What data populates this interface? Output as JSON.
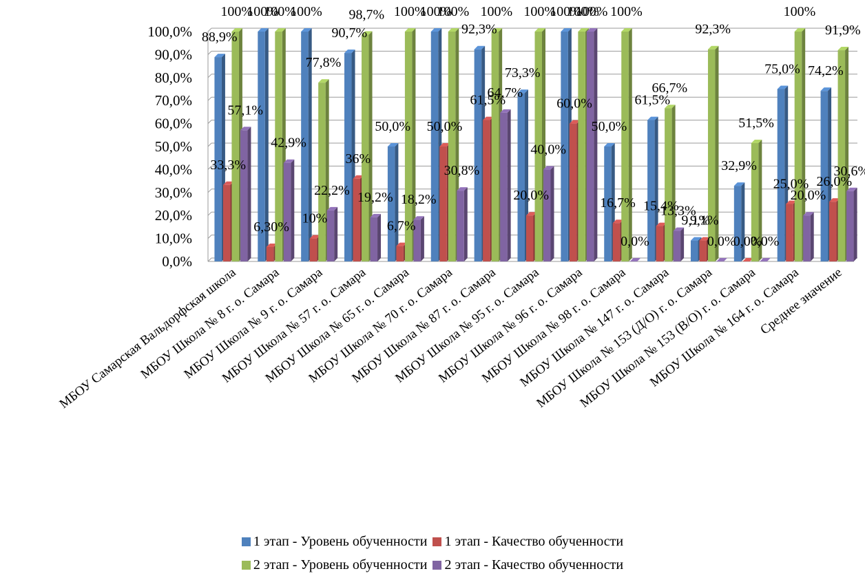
{
  "chart_data": {
    "type": "bar",
    "title": "",
    "xlabel": "",
    "ylabel": "",
    "ylim": [
      0,
      100
    ],
    "yticks": [
      "0,0%",
      "10,0%",
      "20,0%",
      "30,0%",
      "40,0%",
      "50,0%",
      "60,0%",
      "70,0%",
      "80,0%",
      "90,0%",
      "100,0%"
    ],
    "grid": true,
    "legend_position": "bottom",
    "categories": [
      "МБОУ Самарская Вальдорфская школа",
      "МБОУ Школа № 8 г. о. Самара",
      "МБОУ Школа № 9 г. о. Самара",
      "МБОУ Школа № 57 г. о. Самара",
      "МБОУ Школа № 65 г. о. Самара",
      "МБОУ Школа № 70 г. о. Самара",
      "МБОУ Школа № 87 г. о. Самара",
      "МБОУ Школа № 95 г. о. Самара",
      "МБОУ Школа № 96 г. о. Самара",
      "МБОУ Школа № 98 г. о. Самара",
      "МБОУ Школа № 147 г. о. Самара",
      "МБОУ Школа № 153 (Д/О) г. о. Самара",
      "МБОУ Школа № 153 (В/О) г. о. Самара",
      "МБОУ Школа № 164 г. о. Самара",
      "Среднее значение"
    ],
    "series": [
      {
        "name": "1 этап - Уровень обученности",
        "color": "#4f81bd",
        "values": [
          88.9,
          100,
          100,
          90.7,
          50.0,
          100,
          92.3,
          73.3,
          100,
          50.0,
          61.5,
          9.1,
          32.9,
          75.0,
          74.2
        ],
        "labels": [
          "88,9%",
          "100%",
          "100%",
          "90,7%",
          "50,0%",
          "100%",
          "92,3%",
          "73,3%",
          "100%",
          "50,0%",
          "61,5%",
          "9,1%",
          "32,9%",
          "75,0%",
          "74,2%"
        ]
      },
      {
        "name": "1 этап - Качество обученности",
        "color": "#c0504d",
        "values": [
          33.3,
          6.3,
          10,
          36,
          6.7,
          50.0,
          61.5,
          20.0,
          60.0,
          16.7,
          15.4,
          9.1,
          0.0,
          25.0,
          26.0
        ],
        "labels": [
          "33,3%",
          "6,30%",
          "10%",
          "36%",
          "6,7%",
          "50,0%",
          "61,5%",
          "20,0%",
          "60,0%",
          "16,7%",
          "15,4%",
          "9,1%",
          "0,0%",
          "25,0%",
          "26,0%"
        ]
      },
      {
        "name": "2 этап - Уровень обученности",
        "color": "#9bbb59",
        "values": [
          100,
          100,
          77.8,
          98.7,
          100,
          100,
          100,
          100,
          100,
          100,
          66.7,
          92.3,
          51.5,
          100,
          91.9
        ],
        "labels": [
          "100%",
          "100%",
          "77,8%",
          "98,7%",
          "100%",
          "100%",
          "100%",
          "100%",
          "100%",
          "100%",
          "66,7%",
          "92,3%",
          "51,5%",
          "100%",
          "91,9%"
        ]
      },
      {
        "name": "2 этап - Качество обученности",
        "color": "#8064a2",
        "values": [
          57.1,
          42.9,
          22.2,
          19.2,
          18.2,
          30.8,
          64.7,
          40.0,
          100,
          0.0,
          13.3,
          0.0,
          0.0,
          20.0,
          30.6
        ],
        "labels": [
          "57,1%",
          "42,9%",
          "22,2%",
          "19,2%",
          "18,2%",
          "30,8%",
          "64,7%",
          "40,0%",
          "100%",
          "0,0%",
          "13,3%",
          "0,0%",
          "0,0%",
          "20,0%",
          "30,6%"
        ]
      }
    ]
  }
}
